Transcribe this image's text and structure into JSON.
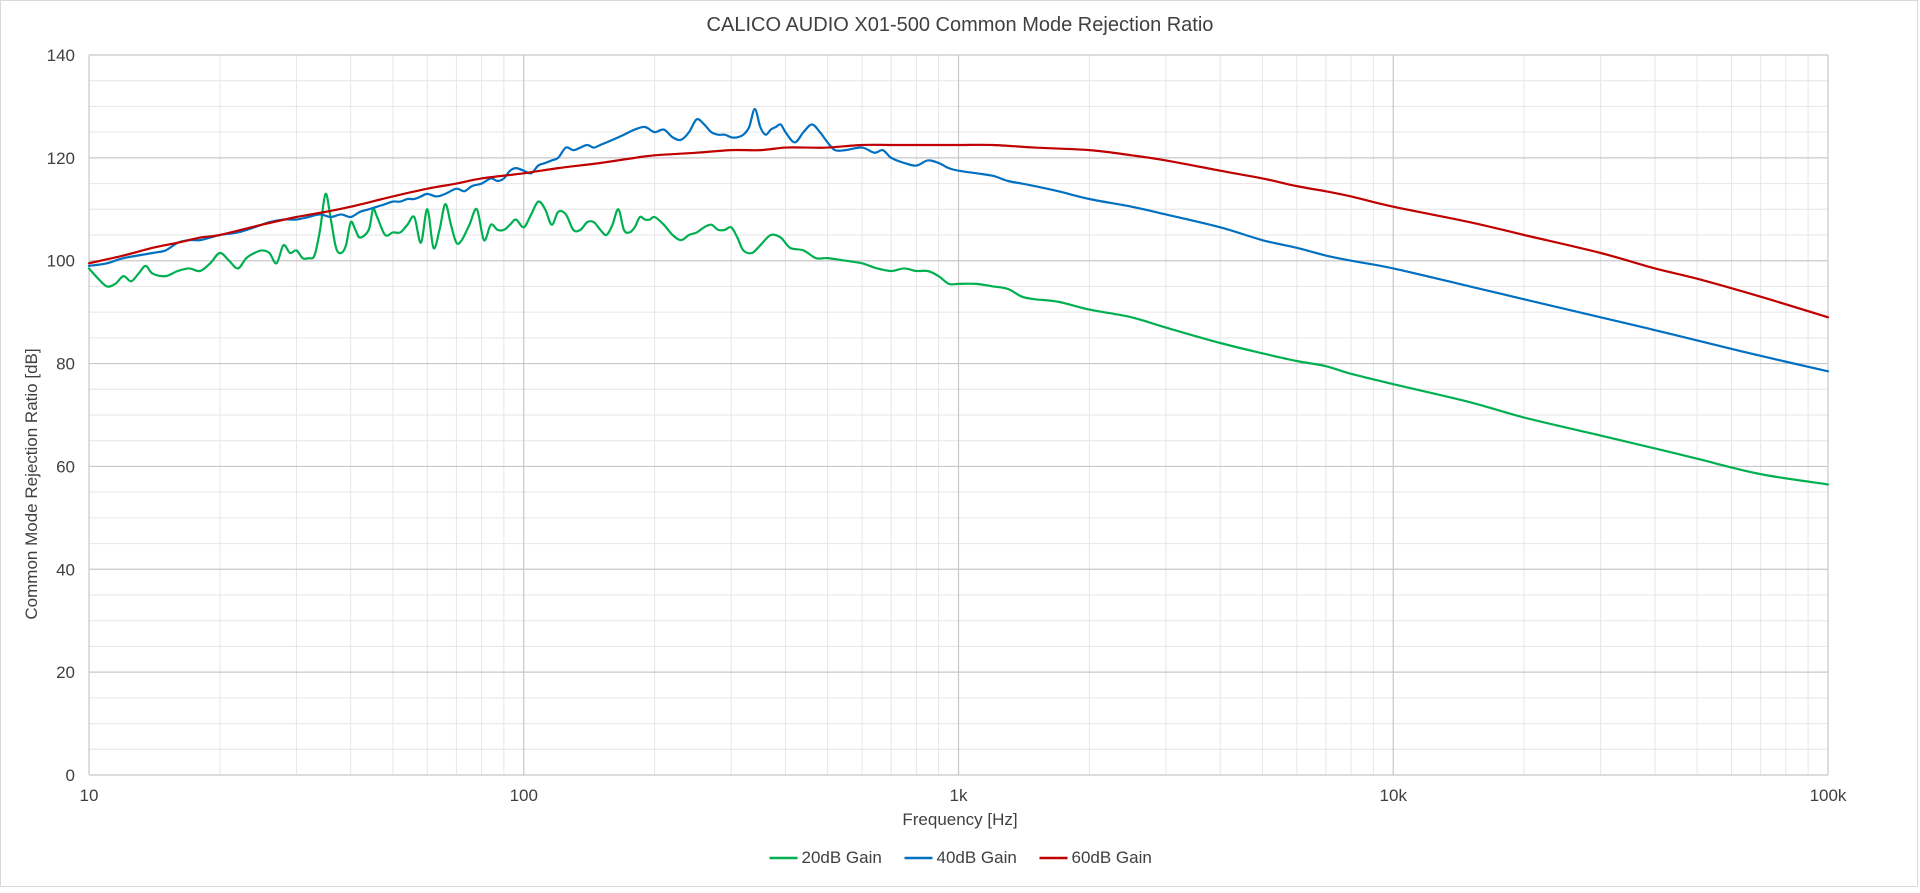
{
  "chart_data": {
    "type": "line",
    "title": "CALICO AUDIO X01-500 Common Mode Rejection Ratio",
    "xlabel": "Frequency [Hz]",
    "ylabel": "Common Mode Rejection Ratio [dB]",
    "x_scale": "log",
    "xlim": [
      10,
      100000
    ],
    "ylim": [
      0,
      140
    ],
    "x_ticks": [
      {
        "value": 10,
        "label": "10"
      },
      {
        "value": 100,
        "label": "100"
      },
      {
        "value": 1000,
        "label": "1k"
      },
      {
        "value": 10000,
        "label": "10k"
      },
      {
        "value": 100000,
        "label": "100k"
      }
    ],
    "y_ticks": [
      {
        "value": 0,
        "label": "0"
      },
      {
        "value": 20,
        "label": "20"
      },
      {
        "value": 40,
        "label": "40"
      },
      {
        "value": 60,
        "label": "60"
      },
      {
        "value": 80,
        "label": "80"
      },
      {
        "value": 100,
        "label": "100"
      },
      {
        "value": 120,
        "label": "120"
      },
      {
        "value": 140,
        "label": "140"
      }
    ],
    "y_minor_step": 5,
    "grid": true,
    "legend_position": "bottom",
    "series": [
      {
        "name": "20dB Gain",
        "color": "#00b050",
        "points": [
          [
            10,
            98.5
          ],
          [
            10.5,
            96.5
          ],
          [
            11,
            95
          ],
          [
            11.5,
            95.5
          ],
          [
            12,
            97
          ],
          [
            12.5,
            96
          ],
          [
            13,
            97.5
          ],
          [
            13.5,
            99
          ],
          [
            14,
            97.5
          ],
          [
            15,
            97
          ],
          [
            16,
            98
          ],
          [
            17,
            98.5
          ],
          [
            18,
            98
          ],
          [
            19,
            99.5
          ],
          [
            20,
            101.5
          ],
          [
            21,
            100
          ],
          [
            22,
            98.5
          ],
          [
            23,
            100.5
          ],
          [
            24,
            101.5
          ],
          [
            25,
            102
          ],
          [
            26,
            101.5
          ],
          [
            27,
            99.5
          ],
          [
            28,
            103
          ],
          [
            29,
            101.5
          ],
          [
            30,
            102
          ],
          [
            31,
            100.5
          ],
          [
            32,
            100.5
          ],
          [
            33,
            101
          ],
          [
            34,
            106
          ],
          [
            35,
            113
          ],
          [
            36,
            108
          ],
          [
            37,
            102.5
          ],
          [
            38,
            101.5
          ],
          [
            39,
            103
          ],
          [
            40,
            107.5
          ],
          [
            41,
            106
          ],
          [
            42,
            104.5
          ],
          [
            44,
            106
          ],
          [
            45,
            110
          ],
          [
            46,
            108.5
          ],
          [
            48,
            105
          ],
          [
            50,
            105.5
          ],
          [
            52,
            105.5
          ],
          [
            54,
            107
          ],
          [
            56,
            108.5
          ],
          [
            58,
            103.5
          ],
          [
            60,
            110
          ],
          [
            62,
            102.5
          ],
          [
            64,
            106
          ],
          [
            66,
            111
          ],
          [
            68,
            107
          ],
          [
            70,
            103.5
          ],
          [
            72,
            104
          ],
          [
            75,
            107
          ],
          [
            78,
            110
          ],
          [
            81,
            104
          ],
          [
            84,
            107
          ],
          [
            87,
            106
          ],
          [
            90,
            106
          ],
          [
            93,
            107
          ],
          [
            96,
            108
          ],
          [
            100,
            106.5
          ],
          [
            104,
            109
          ],
          [
            108,
            111.5
          ],
          [
            112,
            110
          ],
          [
            116,
            107
          ],
          [
            120,
            109.5
          ],
          [
            125,
            109
          ],
          [
            130,
            106
          ],
          [
            135,
            106
          ],
          [
            140,
            107.5
          ],
          [
            145,
            107.5
          ],
          [
            150,
            106
          ],
          [
            155,
            105
          ],
          [
            160,
            107
          ],
          [
            165,
            110
          ],
          [
            170,
            106
          ],
          [
            175,
            105.5
          ],
          [
            180,
            106.5
          ],
          [
            185,
            108.5
          ],
          [
            190,
            108
          ],
          [
            195,
            108
          ],
          [
            200,
            108.5
          ],
          [
            210,
            107
          ],
          [
            220,
            105
          ],
          [
            230,
            104
          ],
          [
            240,
            105
          ],
          [
            250,
            105.5
          ],
          [
            260,
            106.5
          ],
          [
            270,
            107
          ],
          [
            280,
            106
          ],
          [
            290,
            106
          ],
          [
            300,
            106.5
          ],
          [
            310,
            104.5
          ],
          [
            320,
            102
          ],
          [
            335,
            101.5
          ],
          [
            350,
            103
          ],
          [
            370,
            105
          ],
          [
            390,
            104.5
          ],
          [
            410,
            102.5
          ],
          [
            440,
            102
          ],
          [
            470,
            100.5
          ],
          [
            500,
            100.5
          ],
          [
            550,
            100
          ],
          [
            600,
            99.5
          ],
          [
            650,
            98.5
          ],
          [
            700,
            98
          ],
          [
            750,
            98.5
          ],
          [
            800,
            98
          ],
          [
            850,
            98
          ],
          [
            900,
            97
          ],
          [
            950,
            95.5
          ],
          [
            1000,
            95.5
          ],
          [
            1100,
            95.5
          ],
          [
            1200,
            95
          ],
          [
            1300,
            94.5
          ],
          [
            1400,
            93
          ],
          [
            1500,
            92.5
          ],
          [
            1700,
            92
          ],
          [
            2000,
            90.5
          ],
          [
            2500,
            89
          ],
          [
            3000,
            87
          ],
          [
            4000,
            84
          ],
          [
            5000,
            82
          ],
          [
            6000,
            80.5
          ],
          [
            7000,
            79.5
          ],
          [
            8000,
            78
          ],
          [
            10000,
            76
          ],
          [
            15000,
            72.5
          ],
          [
            20000,
            69.5
          ],
          [
            30000,
            66
          ],
          [
            40000,
            63.5
          ],
          [
            50000,
            61.5
          ],
          [
            70000,
            58.5
          ],
          [
            100000,
            56.5
          ]
        ]
      },
      {
        "name": "40dB Gain",
        "color": "#0070c0",
        "points": [
          [
            10,
            99
          ],
          [
            11,
            99.5
          ],
          [
            12,
            100.5
          ],
          [
            14,
            101.5
          ],
          [
            15,
            102
          ],
          [
            16,
            103.5
          ],
          [
            17,
            104
          ],
          [
            18,
            104
          ],
          [
            19,
            104.5
          ],
          [
            20,
            105
          ],
          [
            22,
            105.5
          ],
          [
            24,
            106.5
          ],
          [
            26,
            107.5
          ],
          [
            28,
            108
          ],
          [
            30,
            108
          ],
          [
            32,
            108.5
          ],
          [
            34,
            109
          ],
          [
            36,
            108.5
          ],
          [
            38,
            109
          ],
          [
            40,
            108.5
          ],
          [
            42,
            109.5
          ],
          [
            44,
            110
          ],
          [
            46,
            110.5
          ],
          [
            48,
            111
          ],
          [
            50,
            111.5
          ],
          [
            52,
            111.5
          ],
          [
            54,
            112
          ],
          [
            56,
            112
          ],
          [
            58,
            112.5
          ],
          [
            60,
            113
          ],
          [
            63,
            112.5
          ],
          [
            66,
            113
          ],
          [
            70,
            114
          ],
          [
            73,
            113.5
          ],
          [
            76,
            114.5
          ],
          [
            80,
            115
          ],
          [
            84,
            116
          ],
          [
            87,
            115.5
          ],
          [
            90,
            116
          ],
          [
            93,
            117.5
          ],
          [
            96,
            118
          ],
          [
            100,
            117.5
          ],
          [
            104,
            117
          ],
          [
            108,
            118.5
          ],
          [
            112,
            119
          ],
          [
            116,
            119.5
          ],
          [
            120,
            120
          ],
          [
            125,
            122
          ],
          [
            130,
            121.5
          ],
          [
            135,
            122
          ],
          [
            140,
            122.5
          ],
          [
            145,
            122
          ],
          [
            150,
            122.5
          ],
          [
            160,
            123.5
          ],
          [
            170,
            124.5
          ],
          [
            180,
            125.5
          ],
          [
            190,
            126
          ],
          [
            200,
            125
          ],
          [
            210,
            125.5
          ],
          [
            220,
            124
          ],
          [
            230,
            123.5
          ],
          [
            240,
            125
          ],
          [
            250,
            127.5
          ],
          [
            260,
            126.5
          ],
          [
            270,
            125
          ],
          [
            280,
            124.5
          ],
          [
            290,
            124.5
          ],
          [
            300,
            124
          ],
          [
            310,
            124
          ],
          [
            320,
            124.5
          ],
          [
            330,
            126
          ],
          [
            340,
            129.5
          ],
          [
            350,
            126
          ],
          [
            360,
            124.5
          ],
          [
            370,
            125.5
          ],
          [
            380,
            126
          ],
          [
            390,
            126.5
          ],
          [
            400,
            125
          ],
          [
            420,
            123
          ],
          [
            440,
            125
          ],
          [
            460,
            126.5
          ],
          [
            480,
            125
          ],
          [
            500,
            123
          ],
          [
            520,
            121.5
          ],
          [
            550,
            121.5
          ],
          [
            600,
            122
          ],
          [
            640,
            121
          ],
          [
            670,
            121.5
          ],
          [
            700,
            120
          ],
          [
            750,
            119
          ],
          [
            800,
            118.5
          ],
          [
            850,
            119.5
          ],
          [
            900,
            119
          ],
          [
            950,
            118
          ],
          [
            1000,
            117.5
          ],
          [
            1100,
            117
          ],
          [
            1200,
            116.5
          ],
          [
            1300,
            115.5
          ],
          [
            1400,
            115
          ],
          [
            1500,
            114.5
          ],
          [
            1700,
            113.5
          ],
          [
            2000,
            112
          ],
          [
            2500,
            110.5
          ],
          [
            3000,
            109
          ],
          [
            4000,
            106.5
          ],
          [
            5000,
            104
          ],
          [
            6000,
            102.5
          ],
          [
            7000,
            101
          ],
          [
            8000,
            100
          ],
          [
            10000,
            98.5
          ],
          [
            15000,
            95
          ],
          [
            20000,
            92.5
          ],
          [
            30000,
            89
          ],
          [
            40000,
            86.5
          ],
          [
            50000,
            84.5
          ],
          [
            70000,
            81.5
          ],
          [
            100000,
            78.5
          ]
        ]
      },
      {
        "name": "60dB Gain",
        "color": "#c00000",
        "points": [
          [
            10,
            99.5
          ],
          [
            12,
            101
          ],
          [
            14,
            102.5
          ],
          [
            16,
            103.5
          ],
          [
            18,
            104.5
          ],
          [
            20,
            105
          ],
          [
            25,
            107
          ],
          [
            30,
            108.5
          ],
          [
            35,
            109.5
          ],
          [
            40,
            110.5
          ],
          [
            50,
            112.5
          ],
          [
            60,
            114
          ],
          [
            70,
            115
          ],
          [
            80,
            116
          ],
          [
            100,
            117
          ],
          [
            120,
            118
          ],
          [
            150,
            119
          ],
          [
            180,
            120
          ],
          [
            200,
            120.5
          ],
          [
            250,
            121
          ],
          [
            300,
            121.5
          ],
          [
            350,
            121.5
          ],
          [
            400,
            122
          ],
          [
            450,
            122
          ],
          [
            500,
            122
          ],
          [
            600,
            122.5
          ],
          [
            700,
            122.5
          ],
          [
            800,
            122.5
          ],
          [
            1000,
            122.5
          ],
          [
            1200,
            122.5
          ],
          [
            1500,
            122
          ],
          [
            2000,
            121.5
          ],
          [
            2500,
            120.5
          ],
          [
            3000,
            119.5
          ],
          [
            4000,
            117.5
          ],
          [
            5000,
            116
          ],
          [
            6000,
            114.5
          ],
          [
            7000,
            113.5
          ],
          [
            8000,
            112.5
          ],
          [
            10000,
            110.5
          ],
          [
            15000,
            107.5
          ],
          [
            20000,
            105
          ],
          [
            30000,
            101.5
          ],
          [
            40000,
            98.5
          ],
          [
            50000,
            96.5
          ],
          [
            70000,
            93
          ],
          [
            100000,
            89
          ]
        ]
      }
    ]
  }
}
